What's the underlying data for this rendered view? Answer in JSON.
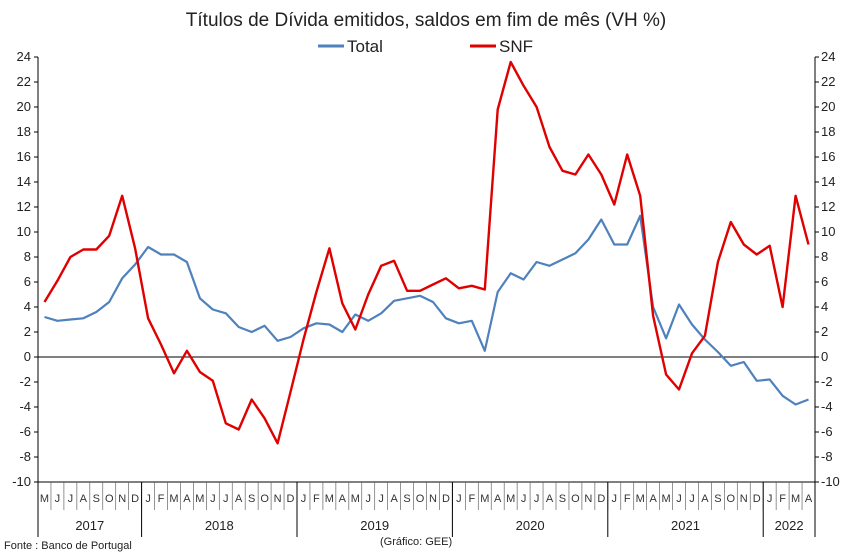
{
  "chart_data": {
    "type": "line",
    "title": "Títulos de Dívida emitidos, saldos em fim de mês  (VH %)",
    "ylim": [
      -10,
      24
    ],
    "yticks": [
      -10,
      -8,
      -6,
      -4,
      -2,
      0,
      2,
      4,
      6,
      8,
      10,
      12,
      14,
      16,
      18,
      20,
      22,
      24
    ],
    "grid": false,
    "legend_position": "top",
    "y_axes": "left and right (mirrored)",
    "month_labels": [
      "M",
      "J",
      "J",
      "A",
      "S",
      "O",
      "N",
      "D",
      "J",
      "F",
      "M",
      "A",
      "M",
      "J",
      "J",
      "A",
      "S",
      "O",
      "N",
      "D",
      "J",
      "F",
      "M",
      "A",
      "M",
      "J",
      "J",
      "A",
      "S",
      "O",
      "N",
      "D",
      "J",
      "F",
      "M",
      "A",
      "M",
      "J",
      "J",
      "A",
      "S",
      "O",
      "N",
      "D",
      "J",
      "F",
      "M",
      "A",
      "M",
      "J",
      "J",
      "A",
      "S",
      "O",
      "N",
      "D",
      "J",
      "F",
      "M",
      "A"
    ],
    "years": [
      {
        "label": "2017",
        "start": 0,
        "end": 8
      },
      {
        "label": "2018",
        "start": 8,
        "end": 20
      },
      {
        "label": "2019",
        "start": 20,
        "end": 32
      },
      {
        "label": "2020",
        "start": 32,
        "end": 44
      },
      {
        "label": "2021",
        "start": 44,
        "end": 56
      },
      {
        "label": "2022",
        "start": 56,
        "end": 60
      }
    ],
    "series": [
      {
        "name": "Total",
        "color": "#4f81bd",
        "values": [
          3.2,
          2.9,
          3.0,
          3.1,
          3.6,
          4.4,
          6.3,
          7.4,
          8.8,
          8.2,
          8.2,
          7.6,
          4.7,
          3.8,
          3.5,
          2.4,
          2.0,
          2.5,
          1.3,
          1.6,
          2.3,
          2.7,
          2.6,
          2.0,
          3.4,
          2.9,
          3.5,
          4.5,
          4.7,
          4.9,
          4.4,
          3.1,
          2.7,
          2.9,
          0.5,
          5.2,
          6.7,
          6.2,
          7.6,
          7.3,
          7.8,
          8.3,
          9.4,
          11.0,
          9.0,
          9.0,
          11.3,
          4.0,
          1.5,
          4.2,
          2.6,
          1.4,
          0.4,
          -0.7,
          -0.4,
          -1.9,
          -1.8,
          -3.1,
          -3.8,
          -3.4
        ]
      },
      {
        "name": "SNF",
        "color": "#e00000",
        "values": [
          4.4,
          6.1,
          8.0,
          8.6,
          8.6,
          9.7,
          12.9,
          8.7,
          3.1,
          1.0,
          -1.3,
          0.5,
          -1.2,
          -1.9,
          -5.3,
          -5.8,
          -3.4,
          -4.9,
          -6.9,
          -2.8,
          1.4,
          5.2,
          8.7,
          4.3,
          2.2,
          5.0,
          7.3,
          7.7,
          5.3,
          5.3,
          5.8,
          6.3,
          5.5,
          5.7,
          5.4,
          19.8,
          23.6,
          21.7,
          20.0,
          16.8,
          14.9,
          14.6,
          16.2,
          14.6,
          12.2,
          16.2,
          12.9,
          3.3,
          -1.4,
          -2.6,
          0.3,
          1.7,
          7.6,
          10.8,
          9.0,
          8.2,
          8.9,
          4.0,
          12.9,
          9.0
        ]
      }
    ]
  },
  "footer": {
    "source": "Fonte : Banco de Portugal",
    "credit": "(Gráfico: GEE)"
  }
}
